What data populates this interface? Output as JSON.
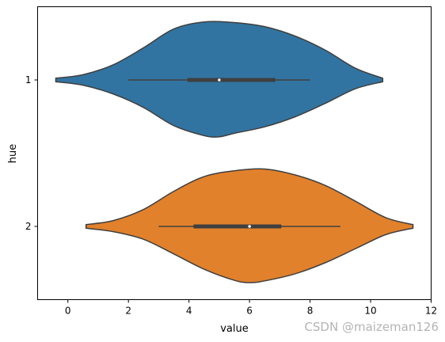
{
  "chart_data": {
    "type": "violin",
    "orientation": "horizontal",
    "xlabel": "value",
    "ylabel": "hue",
    "xlim": [
      -1,
      12
    ],
    "xticks": [
      0,
      2,
      4,
      6,
      8,
      10,
      12
    ],
    "categories": [
      "1",
      "2"
    ],
    "series": [
      {
        "category": "1",
        "color": "#3274a1",
        "kde_min": -0.4,
        "kde_max": 10.4,
        "density": [
          [
            -0.4,
            0.03
          ],
          [
            0.5,
            0.09
          ],
          [
            1.5,
            0.24
          ],
          [
            2.5,
            0.47
          ],
          [
            3.5,
            0.78
          ],
          [
            4.5,
            0.95
          ],
          [
            5.0,
            0.97
          ],
          [
            5.5,
            0.91
          ],
          [
            6.5,
            0.8
          ],
          [
            7.5,
            0.63
          ],
          [
            8.5,
            0.4
          ],
          [
            9.5,
            0.15
          ],
          [
            10.4,
            0.03
          ]
        ],
        "density_upper": [
          [
            -0.4,
            0.03
          ],
          [
            0.5,
            0.09
          ],
          [
            1.5,
            0.26
          ],
          [
            2.5,
            0.55
          ],
          [
            3.5,
            0.87
          ],
          [
            4.5,
            0.99
          ],
          [
            5.5,
            0.98
          ],
          [
            6.5,
            0.91
          ],
          [
            7.5,
            0.75
          ],
          [
            8.5,
            0.51
          ],
          [
            9.5,
            0.2
          ],
          [
            10.4,
            0.03
          ]
        ],
        "box": {
          "whisker_low": 2,
          "q1": 3.95,
          "median": 5.0,
          "q3": 6.85,
          "whisker_high": 8
        }
      },
      {
        "category": "2",
        "color": "#e1812c",
        "kde_min": 0.6,
        "kde_max": 11.4,
        "density": [
          [
            0.6,
            0.03
          ],
          [
            1.5,
            0.09
          ],
          [
            2.5,
            0.22
          ],
          [
            3.5,
            0.47
          ],
          [
            4.5,
            0.73
          ],
          [
            5.5,
            0.92
          ],
          [
            6.0,
            0.96
          ],
          [
            6.5,
            0.93
          ],
          [
            7.5,
            0.81
          ],
          [
            8.5,
            0.62
          ],
          [
            9.5,
            0.38
          ],
          [
            10.5,
            0.14
          ],
          [
            11.4,
            0.03
          ]
        ],
        "density_upper": [
          [
            0.6,
            0.03
          ],
          [
            1.5,
            0.1
          ],
          [
            2.5,
            0.29
          ],
          [
            3.5,
            0.6
          ],
          [
            4.5,
            0.85
          ],
          [
            5.5,
            0.95
          ],
          [
            6.5,
            0.98
          ],
          [
            7.5,
            0.88
          ],
          [
            8.5,
            0.7
          ],
          [
            9.5,
            0.43
          ],
          [
            10.5,
            0.15
          ],
          [
            11.4,
            0.03
          ]
        ],
        "box": {
          "whisker_low": 3,
          "q1": 4.15,
          "median": 6.0,
          "q3": 7.05,
          "whisker_high": 9
        }
      }
    ],
    "edge_color": "#3f3f3f",
    "grid": false,
    "legend": false
  },
  "watermark": "CSDN @maizeman126"
}
